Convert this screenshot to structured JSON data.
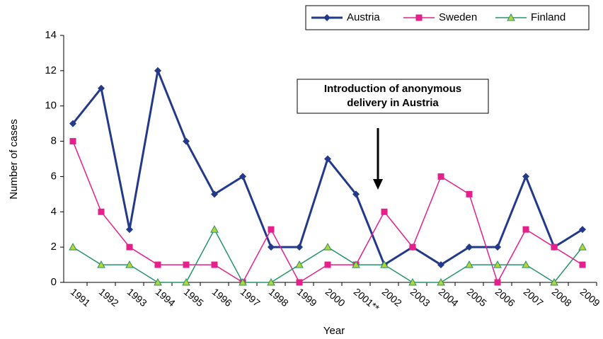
{
  "chart_data": {
    "type": "line",
    "x_label": "Year",
    "y_label": "Number of cases",
    "annotation": [
      "Introduction of anonymous",
      "delivery in Austria"
    ],
    "categories": [
      "1991",
      "1992",
      "1993",
      "1994",
      "1995",
      "1996",
      "1997",
      "1998",
      "1999",
      "2000",
      "2001**",
      "2002",
      "2003",
      "2004",
      "2005",
      "2006",
      "2007",
      "2008",
      "2009"
    ],
    "series": [
      {
        "name": "Austria",
        "color": "#23398a",
        "marker": "diamond",
        "values": [
          9,
          11,
          3,
          12,
          8,
          5,
          6,
          2,
          2,
          7,
          5,
          1,
          2,
          1,
          2,
          2,
          6,
          2,
          3
        ]
      },
      {
        "name": "Sweden",
        "color": "#e4208c",
        "marker": "square",
        "values": [
          8,
          4,
          2,
          1,
          1,
          1,
          0,
          3,
          0,
          1,
          1,
          4,
          2,
          6,
          5,
          0,
          3,
          2,
          1
        ]
      },
      {
        "name": "Finland",
        "color": "#27946a",
        "marker": "triangle",
        "values": [
          2,
          1,
          1,
          0,
          0,
          3,
          0,
          0,
          1,
          2,
          1,
          1,
          0,
          0,
          1,
          1,
          1,
          0,
          2
        ]
      }
    ],
    "ylim": [
      0,
      14
    ],
    "yticks": [
      0,
      2,
      4,
      6,
      8,
      10,
      12,
      14
    ],
    "legend": "top-right"
  }
}
